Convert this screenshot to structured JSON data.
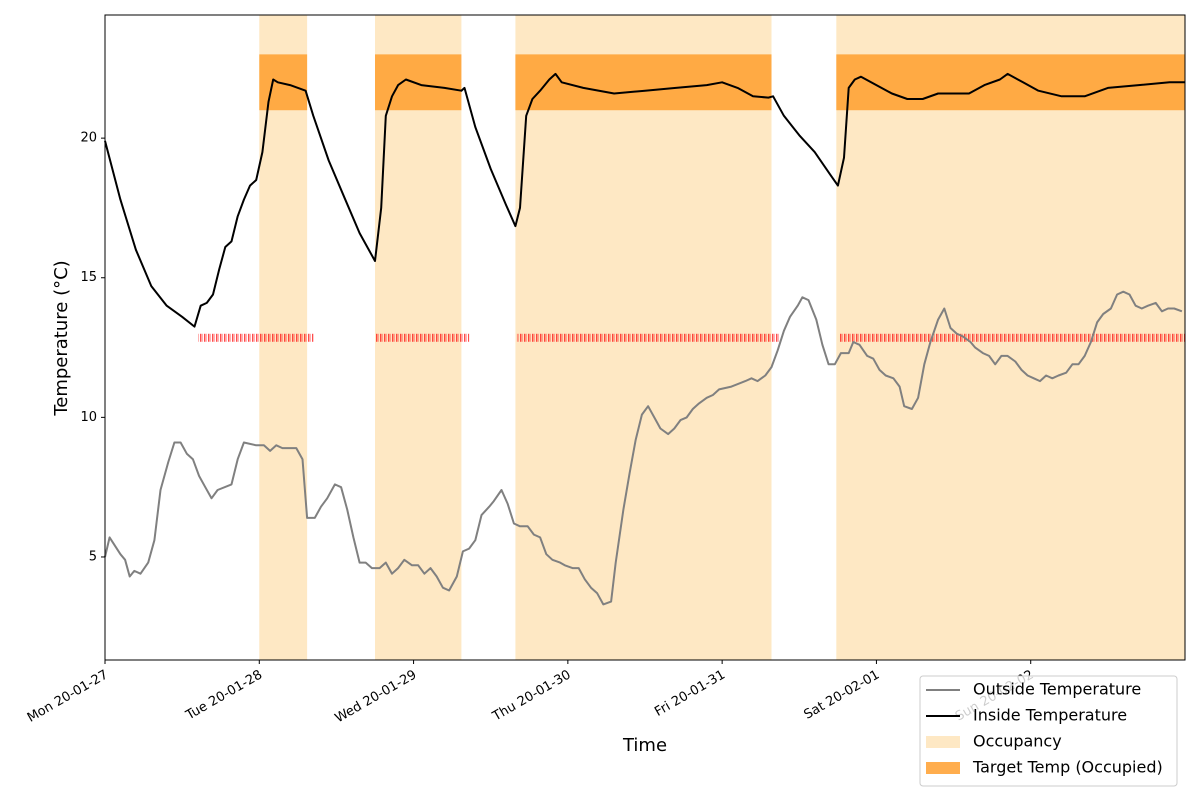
{
  "chart_data": {
    "type": "line",
    "xlabel": "Time",
    "ylabel": "Temperature (°C)",
    "xlim": [
      0,
      7
    ],
    "ylim": [
      1.31,
      24.41
    ],
    "xticks": [
      {
        "value": 0,
        "label": "Mon 20-01-27"
      },
      {
        "value": 1,
        "label": "Tue 20-01-28"
      },
      {
        "value": 2,
        "label": "Wed 20-01-29"
      },
      {
        "value": 3,
        "label": "Thu 20-01-30"
      },
      {
        "value": 4,
        "label": "Fri 20-01-31"
      },
      {
        "value": 5,
        "label": "Sat 20-02-01"
      },
      {
        "value": 6,
        "label": "Sun 20-02-02"
      }
    ],
    "yticks": [
      5,
      10,
      15,
      20
    ],
    "legend": "lower right",
    "series": [
      {
        "name": "Outside Temperature",
        "color": "#808080",
        "x": [
          0,
          0.03,
          0.1,
          0.13,
          0.16,
          0.19,
          0.23,
          0.28,
          0.32,
          0.36,
          0.41,
          0.45,
          0.49,
          0.53,
          0.57,
          0.61,
          0.65,
          0.69,
          0.73,
          0.82,
          0.86,
          0.9,
          0.98,
          1.03,
          1.07,
          1.11,
          1.15,
          1.24,
          1.28,
          1.31,
          1.36,
          1.4,
          1.44,
          1.49,
          1.53,
          1.57,
          1.61,
          1.65,
          1.69,
          1.73,
          1.78,
          1.82,
          1.86,
          1.9,
          1.94,
          1.99,
          2.03,
          2.07,
          2.11,
          2.15,
          2.19,
          2.23,
          2.28,
          2.32,
          2.36,
          2.4,
          2.44,
          2.49,
          2.52,
          2.57,
          2.61,
          2.65,
          2.69,
          2.74,
          2.78,
          2.82,
          2.86,
          2.9,
          2.95,
          2.98,
          3.03,
          3.07,
          3.11,
          3.15,
          3.19,
          3.23,
          3.28,
          3.31,
          3.36,
          3.4,
          3.44,
          3.48,
          3.52,
          3.57,
          3.6,
          3.65,
          3.69,
          3.73,
          3.77,
          3.81,
          3.85,
          3.9,
          3.94,
          3.98,
          4.06,
          4.15,
          4.19,
          4.23,
          4.28,
          4.32,
          4.36,
          4.4,
          4.44,
          4.49,
          4.52,
          4.56,
          4.61,
          4.65,
          4.69,
          4.73,
          4.77,
          4.82,
          4.85,
          4.89,
          4.94,
          4.98,
          5.02,
          5.06,
          5.11,
          5.15,
          5.18,
          5.23,
          5.27,
          5.31,
          5.35,
          5.4,
          5.44,
          5.48,
          5.52,
          5.56,
          5.61,
          5.64,
          5.69,
          5.73,
          5.77,
          5.81,
          5.85,
          5.9,
          5.94,
          5.98,
          6.02,
          6.06,
          6.1,
          6.14,
          6.18,
          6.23,
          6.27,
          6.31,
          6.35,
          6.39,
          6.43,
          6.47,
          6.52,
          6.56,
          6.6,
          6.64,
          6.68,
          6.72,
          6.76,
          6.81,
          6.85,
          6.89,
          6.93,
          6.98
        ],
        "values": [
          5.0,
          5.7,
          5.1,
          4.9,
          4.3,
          4.5,
          4.4,
          4.8,
          5.6,
          7.4,
          8.4,
          9.1,
          9.1,
          8.7,
          8.5,
          7.9,
          7.5,
          7.1,
          7.4,
          7.6,
          8.5,
          9.1,
          9.0,
          9.0,
          8.8,
          9.0,
          8.9,
          8.9,
          8.5,
          6.4,
          6.4,
          6.8,
          7.1,
          7.6,
          7.5,
          6.7,
          5.7,
          4.8,
          4.8,
          4.6,
          4.6,
          4.8,
          4.4,
          4.6,
          4.9,
          4.7,
          4.7,
          4.4,
          4.6,
          4.3,
          3.9,
          3.8,
          4.3,
          5.2,
          5.3,
          5.6,
          6.5,
          6.8,
          7.0,
          7.4,
          6.9,
          6.2,
          6.1,
          6.1,
          5.8,
          5.7,
          5.1,
          4.9,
          4.8,
          4.7,
          4.6,
          4.6,
          4.2,
          3.9,
          3.7,
          3.3,
          3.4,
          4.8,
          6.7,
          8.0,
          9.2,
          10.1,
          10.4,
          9.9,
          9.6,
          9.4,
          9.6,
          9.9,
          10.0,
          10.3,
          10.5,
          10.7,
          10.8,
          11.0,
          11.1,
          11.3,
          11.4,
          11.3,
          11.5,
          11.8,
          12.4,
          13.1,
          13.6,
          14.0,
          14.3,
          14.2,
          13.5,
          12.6,
          11.9,
          11.9,
          12.3,
          12.3,
          12.7,
          12.6,
          12.2,
          12.1,
          11.7,
          11.5,
          11.4,
          11.1,
          10.4,
          10.3,
          10.7,
          11.9,
          12.7,
          13.5,
          13.9,
          13.2,
          13.0,
          12.9,
          12.7,
          12.5,
          12.3,
          12.2,
          11.9,
          12.2,
          12.2,
          12.0,
          11.7,
          11.5,
          11.4,
          11.3,
          11.5,
          11.4,
          11.5,
          11.6,
          11.9,
          11.9,
          12.2,
          12.7,
          13.4,
          13.7,
          13.9,
          14.4,
          14.5,
          14.4,
          14.0,
          13.9,
          14.0,
          14.1,
          13.8,
          13.9,
          13.9,
          13.8
        ]
      },
      {
        "name": "Inside Temperature",
        "color": "#000000",
        "x": [
          0,
          0.1,
          0.2,
          0.3,
          0.4,
          0.5,
          0.58,
          0.62,
          0.66,
          0.7,
          0.74,
          0.78,
          0.82,
          0.86,
          0.9,
          0.94,
          0.98,
          1.02,
          1.06,
          1.09,
          1.12,
          1.2,
          1.3,
          1.35,
          1.45,
          1.55,
          1.65,
          1.75,
          1.79,
          1.82,
          1.86,
          1.9,
          1.95,
          2.05,
          2.2,
          2.31,
          2.33,
          2.4,
          2.5,
          2.6,
          2.66,
          2.69,
          2.73,
          2.77,
          2.82,
          2.88,
          2.92,
          2.96,
          3.1,
          3.3,
          3.5,
          3.7,
          3.9,
          4.0,
          4.1,
          4.2,
          4.3,
          4.33,
          4.4,
          4.5,
          4.6,
          4.7,
          4.75,
          4.79,
          4.82,
          4.86,
          4.9,
          5.0,
          5.1,
          5.2,
          5.3,
          5.4,
          5.5,
          5.6,
          5.7,
          5.8,
          5.85,
          5.95,
          6.05,
          6.2,
          6.35,
          6.5,
          6.7,
          6.9,
          7.0
        ],
        "values": [
          19.9,
          17.8,
          16.0,
          14.7,
          14.0,
          13.6,
          13.25,
          14.0,
          14.1,
          14.4,
          15.3,
          16.1,
          16.3,
          17.2,
          17.8,
          18.3,
          18.5,
          19.5,
          21.3,
          22.1,
          22.0,
          21.9,
          21.7,
          20.8,
          19.2,
          17.9,
          16.6,
          15.6,
          17.5,
          20.8,
          21.5,
          21.9,
          22.1,
          21.9,
          21.8,
          21.7,
          21.8,
          20.4,
          18.9,
          17.6,
          16.85,
          17.5,
          20.8,
          21.4,
          21.7,
          22.1,
          22.3,
          22.0,
          21.8,
          21.6,
          21.7,
          21.8,
          21.9,
          22.0,
          21.8,
          21.5,
          21.45,
          21.5,
          20.8,
          20.1,
          19.5,
          18.7,
          18.3,
          19.3,
          21.8,
          22.1,
          22.2,
          21.9,
          21.6,
          21.4,
          21.4,
          21.6,
          21.6,
          21.6,
          21.9,
          22.1,
          22.3,
          22.0,
          21.7,
          21.5,
          21.5,
          21.8,
          21.9,
          22.0,
          22.0
        ]
      }
    ],
    "occupancy": {
      "name": "Occupancy",
      "color": "#fee8c4",
      "ranges": [
        [
          1.0,
          1.31
        ],
        [
          1.75,
          2.31
        ],
        [
          2.66,
          4.32
        ],
        [
          4.74,
          7
        ]
      ]
    },
    "target": {
      "name": "Target Temp (Occupied)",
      "color": "#ff9f2e",
      "y": [
        21,
        23
      ]
    },
    "markers": {
      "color": "#ff0000",
      "y": 12.85,
      "ranges": [
        [
          0.6,
          1.35
        ],
        [
          1.75,
          2.36
        ],
        [
          2.67,
          4.37
        ],
        [
          4.76,
          7
        ]
      ]
    }
  }
}
